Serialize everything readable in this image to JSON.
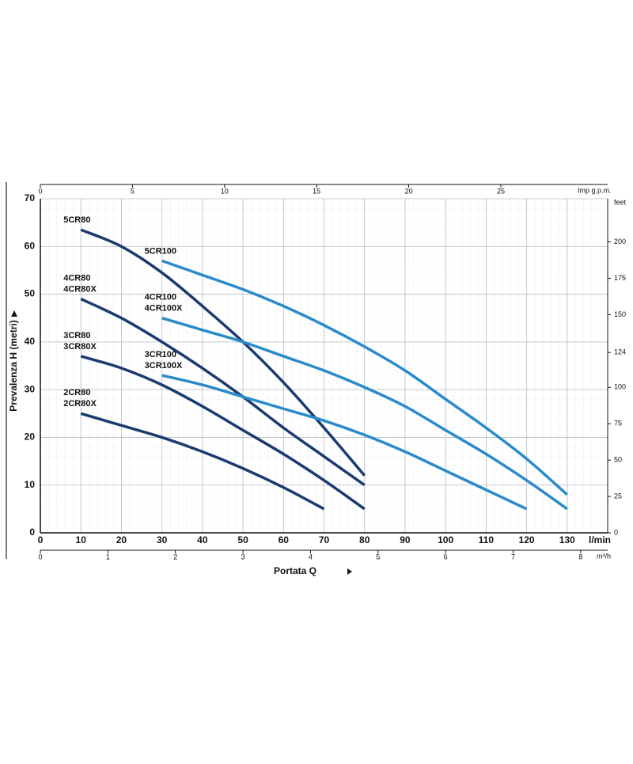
{
  "chart_data": {
    "type": "line",
    "y_label": "Prevalenza H (metri)",
    "x_label": "Portata Q",
    "x_unit": "l/min",
    "xlim": [
      0,
      140
    ],
    "xticks": [
      0,
      10,
      20,
      30,
      40,
      50,
      60,
      70,
      80,
      90,
      100,
      110,
      120,
      130
    ],
    "ylim": [
      0,
      70
    ],
    "yticks": [
      0,
      10,
      20,
      30,
      40,
      50,
      60,
      70
    ],
    "grid": true,
    "top_axis": {
      "unit": "Imp g.p.m.",
      "xlim": [
        0,
        30.8
      ],
      "xticks": [
        0,
        5,
        10,
        15,
        20,
        25
      ]
    },
    "bottom_axis": {
      "unit": "m³/h",
      "xlim": [
        0,
        8.4
      ],
      "xticks": [
        0,
        1,
        2,
        3,
        4,
        5,
        6,
        7,
        8
      ]
    },
    "right_axis": {
      "unit": "feet",
      "y2lim": [
        0,
        229.7
      ],
      "y2ticks": [
        0,
        25,
        50,
        75,
        100,
        124,
        150,
        175,
        200
      ]
    },
    "series": [
      {
        "labels": [
          "5CR80"
        ],
        "color": "#1b3b70",
        "x": [
          10,
          20,
          30,
          40,
          50,
          60,
          70,
          80
        ],
        "values": [
          63.5,
          60,
          54.5,
          47.5,
          40,
          31.5,
          22,
          12
        ]
      },
      {
        "labels": [
          "4CR80",
          "4CR80X"
        ],
        "color": "#1b3b70",
        "x": [
          10,
          20,
          30,
          40,
          50,
          60,
          70,
          80
        ],
        "values": [
          49,
          45,
          40,
          34.5,
          28.5,
          22,
          16,
          10
        ]
      },
      {
        "labels": [
          "3CR80",
          "3CR80X"
        ],
        "color": "#1b3b70",
        "x": [
          10,
          20,
          30,
          40,
          50,
          60,
          70,
          80
        ],
        "values": [
          37,
          34.5,
          31,
          26.5,
          21.5,
          16.5,
          11,
          5
        ]
      },
      {
        "labels": [
          "2CR80",
          "2CR80X"
        ],
        "color": "#1b3b70",
        "x": [
          10,
          20,
          30,
          40,
          50,
          60,
          70
        ],
        "values": [
          25,
          22.5,
          20,
          17,
          13.5,
          9.5,
          5
        ]
      },
      {
        "labels": [
          "5CR100"
        ],
        "color": "#2a8bcb",
        "x": [
          30,
          40,
          50,
          60,
          70,
          80,
          90,
          100,
          110,
          120,
          130
        ],
        "values": [
          57,
          54,
          51,
          47.5,
          43.5,
          39,
          34,
          28,
          22,
          15.5,
          8
        ]
      },
      {
        "labels": [
          "4CR100",
          "4CR100X"
        ],
        "color": "#2a8bcb",
        "x": [
          30,
          40,
          50,
          60,
          70,
          80,
          90,
          100,
          110,
          120,
          130
        ],
        "values": [
          45,
          42.5,
          40,
          37,
          34,
          30.5,
          26.5,
          21.5,
          16.5,
          11,
          5
        ]
      },
      {
        "labels": [
          "3CR100",
          "3CR100X"
        ],
        "color": "#2a8bcb",
        "x": [
          30,
          40,
          50,
          60,
          70,
          80,
          90,
          100,
          110,
          120
        ],
        "values": [
          33,
          31,
          28.5,
          26,
          23.5,
          20.5,
          17,
          13,
          9,
          5
        ]
      }
    ]
  }
}
